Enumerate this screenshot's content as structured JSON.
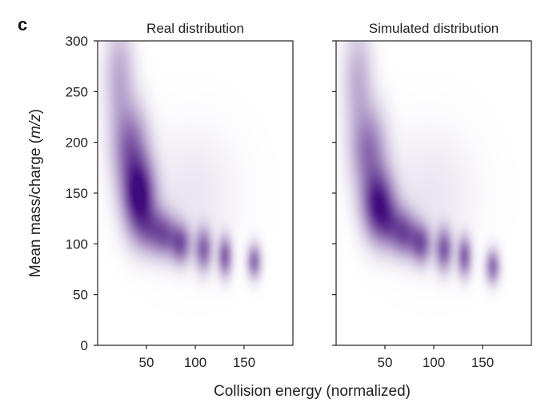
{
  "figure": {
    "panel_letter": "c",
    "xlabel": "Collision energy (normalized)",
    "ylabel": "Mean mass/charge (m/z)",
    "ylabel_prefix": "Mean mass/charge (",
    "ylabel_italic": "m/z",
    "ylabel_suffix": ")"
  },
  "chart_data": [
    {
      "type": "heatmap",
      "title": "Real distribution",
      "colormap": "white-to-purple",
      "color": "#3f0a7a",
      "xlim": [
        0,
        200
      ],
      "ylim": [
        0,
        300
      ],
      "xticks": [
        50,
        100,
        150
      ],
      "yticks": [
        0,
        50,
        100,
        150,
        200,
        250,
        300
      ],
      "blobs": [
        {
          "x": 22,
          "y": 265,
          "sx": 10,
          "sy": 35,
          "w": 0.28
        },
        {
          "x": 33,
          "y": 195,
          "sx": 12,
          "sy": 28,
          "w": 0.55
        },
        {
          "x": 42,
          "y": 148,
          "sx": 11,
          "sy": 24,
          "w": 0.95
        },
        {
          "x": 55,
          "y": 115,
          "sx": 12,
          "sy": 16,
          "w": 0.45
        },
        {
          "x": 70,
          "y": 108,
          "sx": 9,
          "sy": 14,
          "w": 0.42
        },
        {
          "x": 85,
          "y": 100,
          "sx": 7,
          "sy": 13,
          "w": 0.55
        },
        {
          "x": 108,
          "y": 95,
          "sx": 6,
          "sy": 14,
          "w": 0.55
        },
        {
          "x": 130,
          "y": 88,
          "sx": 5,
          "sy": 13,
          "w": 0.55
        },
        {
          "x": 160,
          "y": 83,
          "sx": 5,
          "sy": 11,
          "w": 0.5
        },
        {
          "x": 95,
          "y": 150,
          "sx": 30,
          "sy": 40,
          "w": 0.07
        }
      ]
    },
    {
      "type": "heatmap",
      "title": "Simulated distribution",
      "colormap": "white-to-purple",
      "color": "#3f0a7a",
      "xlim": [
        0,
        200
      ],
      "ylim": [
        0,
        300
      ],
      "xticks": [
        50,
        100,
        150
      ],
      "yticks": [
        0,
        50,
        100,
        150,
        200,
        250,
        300
      ],
      "blobs": [
        {
          "x": 22,
          "y": 262,
          "sx": 10,
          "sy": 35,
          "w": 0.26
        },
        {
          "x": 33,
          "y": 192,
          "sx": 12,
          "sy": 28,
          "w": 0.5
        },
        {
          "x": 43,
          "y": 140,
          "sx": 11,
          "sy": 22,
          "w": 0.85
        },
        {
          "x": 58,
          "y": 118,
          "sx": 12,
          "sy": 16,
          "w": 0.45
        },
        {
          "x": 72,
          "y": 108,
          "sx": 9,
          "sy": 14,
          "w": 0.45
        },
        {
          "x": 87,
          "y": 100,
          "sx": 7,
          "sy": 13,
          "w": 0.55
        },
        {
          "x": 110,
          "y": 95,
          "sx": 6,
          "sy": 14,
          "w": 0.58
        },
        {
          "x": 131,
          "y": 88,
          "sx": 5,
          "sy": 13,
          "w": 0.55
        },
        {
          "x": 160,
          "y": 78,
          "sx": 5,
          "sy": 11,
          "w": 0.5
        },
        {
          "x": 95,
          "y": 150,
          "sx": 30,
          "sy": 40,
          "w": 0.07
        }
      ]
    }
  ]
}
